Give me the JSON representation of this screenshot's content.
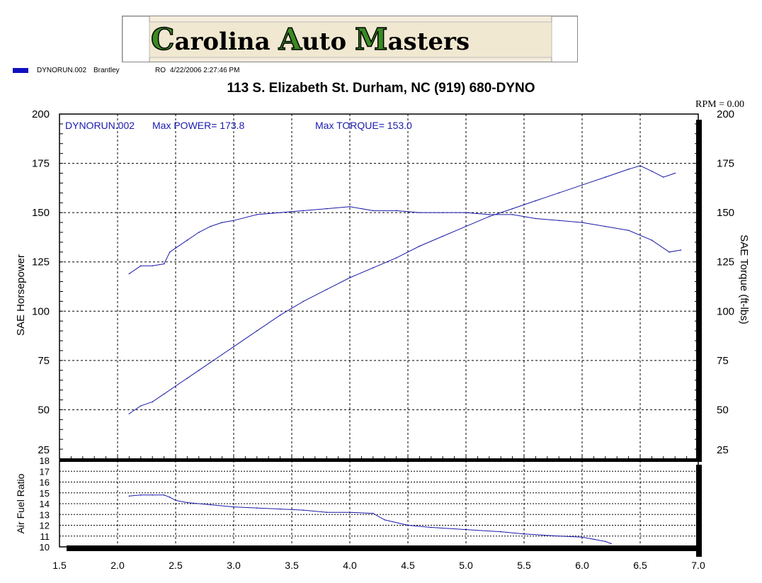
{
  "logo": {
    "title": "Carolina Auto Masters",
    "word1_cap": "C",
    "word1_rest": "arolina",
    "word2_cap": "A",
    "word2_rest": "uto",
    "word3_cap": "M",
    "word3_rest": "asters"
  },
  "legend": {
    "run_name": "DYNORUN.002",
    "operator": "Brantley",
    "mode": "RO",
    "datetime": "4/22/2006 2:27:46 PM",
    "swatch_color": "#1010c0"
  },
  "subtitle": "113 S. Elizabeth St.  Durham, NC  (919) 680-DYNO",
  "colors": {
    "trace": "#1a1aa8",
    "frame": "#000000",
    "grid": "#000000",
    "label_blue": "#1a1ab0"
  },
  "chart_data": [
    {
      "type": "line",
      "rpm_readout": "RPM = 0.00",
      "annotation": {
        "run": "DYNORUN.002",
        "max_power": "Max POWER= 173.8",
        "max_torque": "Max TORQUE= 153.0"
      },
      "xlim": [
        1.5,
        7.0
      ],
      "ylim": [
        25,
        200
      ],
      "ylabel": "SAE Horsepower",
      "ylabel_right": "SAE Torque (ft-lbs)",
      "y_ticks": [
        "200",
        "175",
        "150",
        "125",
        "100",
        "75",
        "50",
        "25"
      ],
      "grid": true,
      "series": [
        {
          "name": "SAE Horsepower",
          "x": [
            2.1,
            2.2,
            2.3,
            2.4,
            2.5,
            2.6,
            2.7,
            2.8,
            2.9,
            3.0,
            3.2,
            3.4,
            3.6,
            3.8,
            4.0,
            4.2,
            4.4,
            4.6,
            4.8,
            5.0,
            5.2,
            5.4,
            5.6,
            5.8,
            6.0,
            6.2,
            6.4,
            6.5,
            6.6,
            6.7,
            6.8
          ],
          "values": [
            48,
            52,
            54,
            58,
            62,
            66,
            70,
            74,
            78,
            82,
            90,
            98,
            105,
            111,
            117,
            122,
            127,
            133,
            138,
            143,
            148,
            152,
            156,
            160,
            164,
            168,
            172,
            173.8,
            171,
            168,
            170
          ]
        },
        {
          "name": "SAE Torque",
          "x": [
            2.1,
            2.2,
            2.3,
            2.4,
            2.45,
            2.5,
            2.6,
            2.7,
            2.8,
            2.9,
            3.0,
            3.2,
            3.4,
            3.6,
            3.8,
            4.0,
            4.2,
            4.4,
            4.6,
            4.8,
            5.0,
            5.2,
            5.4,
            5.6,
            5.8,
            6.0,
            6.2,
            6.4,
            6.6,
            6.75,
            6.85
          ],
          "values": [
            119,
            123,
            123,
            124,
            130,
            132,
            136,
            140,
            143,
            145,
            146,
            149,
            150,
            151,
            152,
            153.0,
            151,
            151,
            150,
            150,
            150,
            149,
            149,
            147,
            146,
            145,
            143,
            141,
            136,
            130,
            131
          ]
        }
      ]
    },
    {
      "type": "line",
      "xlim": [
        1.5,
        7.0
      ],
      "ylim": [
        10,
        18
      ],
      "xlabel": "",
      "ylabel": "Air Fuel Ratio",
      "y_ticks": [
        "18",
        "17",
        "16",
        "15",
        "14",
        "13",
        "12",
        "11",
        "10"
      ],
      "x_ticks": [
        "1.5",
        "2.0",
        "2.5",
        "3.0",
        "3.5",
        "4.0",
        "4.5",
        "5.0",
        "5.5",
        "6.0",
        "6.5",
        "7.0"
      ],
      "grid": true,
      "series": [
        {
          "name": "Air Fuel Ratio",
          "x": [
            2.1,
            2.2,
            2.3,
            2.4,
            2.45,
            2.5,
            2.6,
            2.8,
            3.0,
            3.2,
            3.4,
            3.6,
            3.8,
            4.0,
            4.2,
            4.3,
            4.5,
            4.7,
            5.0,
            5.3,
            5.5,
            5.8,
            6.0,
            6.1,
            6.2,
            6.25
          ],
          "values": [
            14.7,
            14.8,
            14.8,
            14.8,
            14.6,
            14.3,
            14.1,
            13.9,
            13.7,
            13.6,
            13.5,
            13.4,
            13.2,
            13.2,
            13.1,
            12.5,
            12.0,
            11.8,
            11.6,
            11.4,
            11.2,
            11.0,
            10.9,
            10.7,
            10.5,
            10.3
          ]
        }
      ]
    }
  ]
}
